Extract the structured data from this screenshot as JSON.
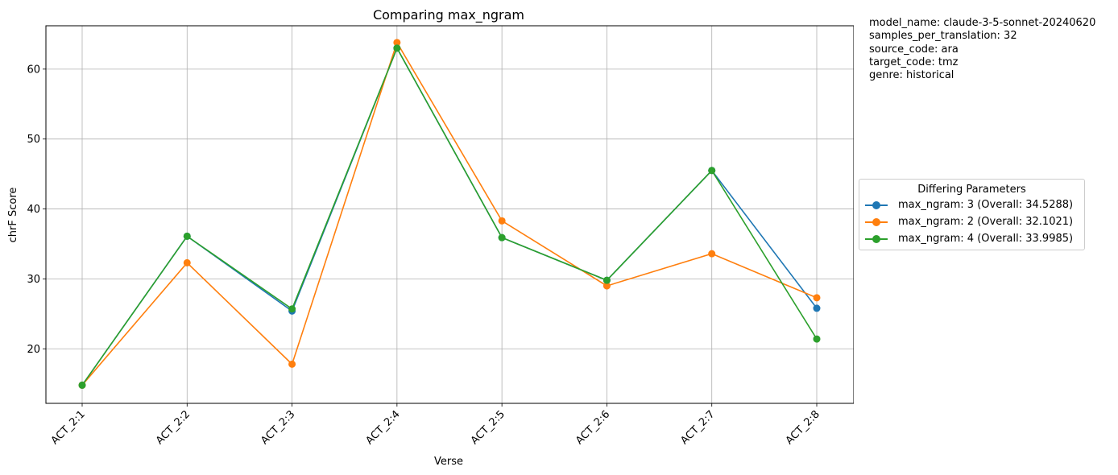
{
  "chart_data": {
    "type": "line",
    "title": "Comparing max_ngram",
    "xlabel": "Verse",
    "ylabel": "chrF Score",
    "categories": [
      "ACT_2:1",
      "ACT_2:2",
      "ACT_2:3",
      "ACT_2:4",
      "ACT_2:5",
      "ACT_2:6",
      "ACT_2:7",
      "ACT_2:8"
    ],
    "ylim": [
      12.2,
      66.2
    ],
    "yticks": [
      20,
      30,
      40,
      50,
      60
    ],
    "grid": true,
    "legend": {
      "title": "Differing Parameters",
      "placement": "outside-right"
    },
    "series": [
      {
        "name": "max_ngram: 3 (Overall: 34.5288)",
        "color": "#1f77b4",
        "values": [
          14.8,
          36.1,
          25.4,
          63.0,
          35.9,
          29.8,
          45.5,
          25.8
        ]
      },
      {
        "name": "max_ngram: 2 (Overall: 32.1021)",
        "color": "#ff7f0e",
        "values": [
          14.8,
          32.3,
          17.8,
          63.8,
          38.3,
          29.0,
          33.6,
          27.3
        ]
      },
      {
        "name": "max_ngram: 4 (Overall: 33.9985)",
        "color": "#2ca02c",
        "values": [
          14.8,
          36.1,
          25.7,
          63.0,
          35.9,
          29.8,
          45.5,
          21.4
        ]
      }
    ]
  },
  "metadata_lines": [
    "model_name: claude-3-5-sonnet-20240620",
    "samples_per_translation: 32",
    "source_code: ara",
    "target_code: tmz",
    "genre: historical"
  ]
}
